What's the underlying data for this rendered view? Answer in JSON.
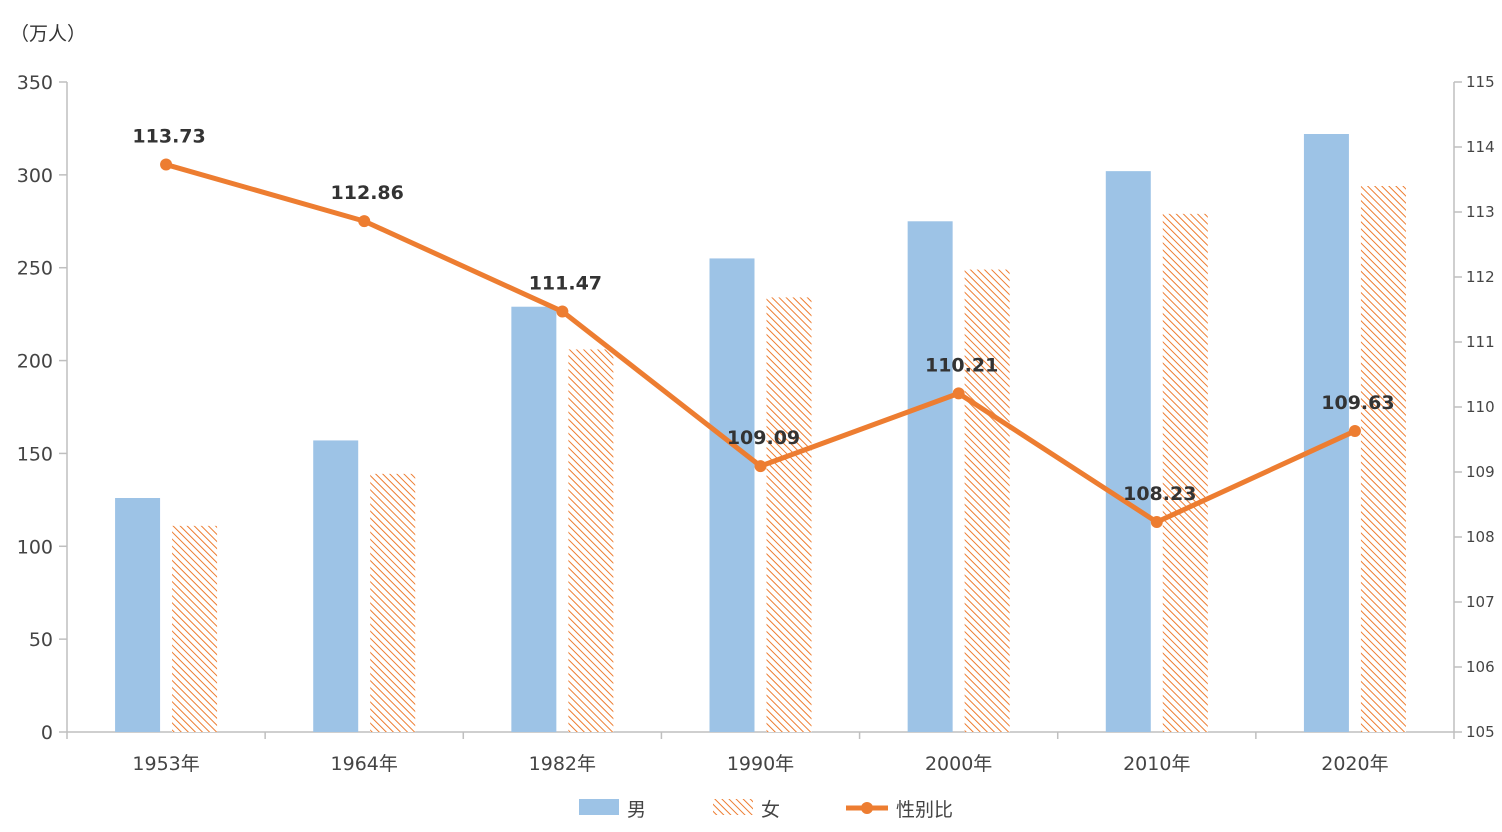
{
  "chart_data": {
    "type": "bar",
    "categories": [
      "1953年",
      "1964年",
      "1982年",
      "1990年",
      "2000年",
      "2010年",
      "2020年"
    ],
    "y_unit": "（万人）",
    "ylim": [
      0,
      350
    ],
    "yticks": [
      "0",
      "50",
      "100",
      "150",
      "200",
      "250",
      "300",
      "350"
    ],
    "ylim_right": [
      105,
      115
    ],
    "yticks_right": [
      "105",
      "106",
      "107",
      "108",
      "109",
      "110",
      "111",
      "112",
      "113",
      "114",
      "115"
    ],
    "series": [
      {
        "name": "男",
        "kind": "bar",
        "axis": "left",
        "color": "#9DC3E6",
        "values": [
          126,
          157,
          229,
          255,
          275,
          302,
          322
        ]
      },
      {
        "name": "女",
        "kind": "bar-hatched",
        "axis": "left",
        "color": "#ED7D31",
        "values": [
          111,
          139,
          206,
          234,
          249,
          279,
          294
        ]
      },
      {
        "name": "性别比",
        "kind": "line",
        "axis": "right",
        "color": "#ED7D31",
        "values": [
          113.73,
          112.86,
          111.47,
          109.09,
          110.21,
          108.23,
          109.63
        ],
        "labels": [
          "113.73",
          "112.86",
          "111.47",
          "109.09",
          "110.21",
          "108.23",
          "109.63"
        ]
      }
    ],
    "legend_position": "bottom",
    "grid": false
  }
}
